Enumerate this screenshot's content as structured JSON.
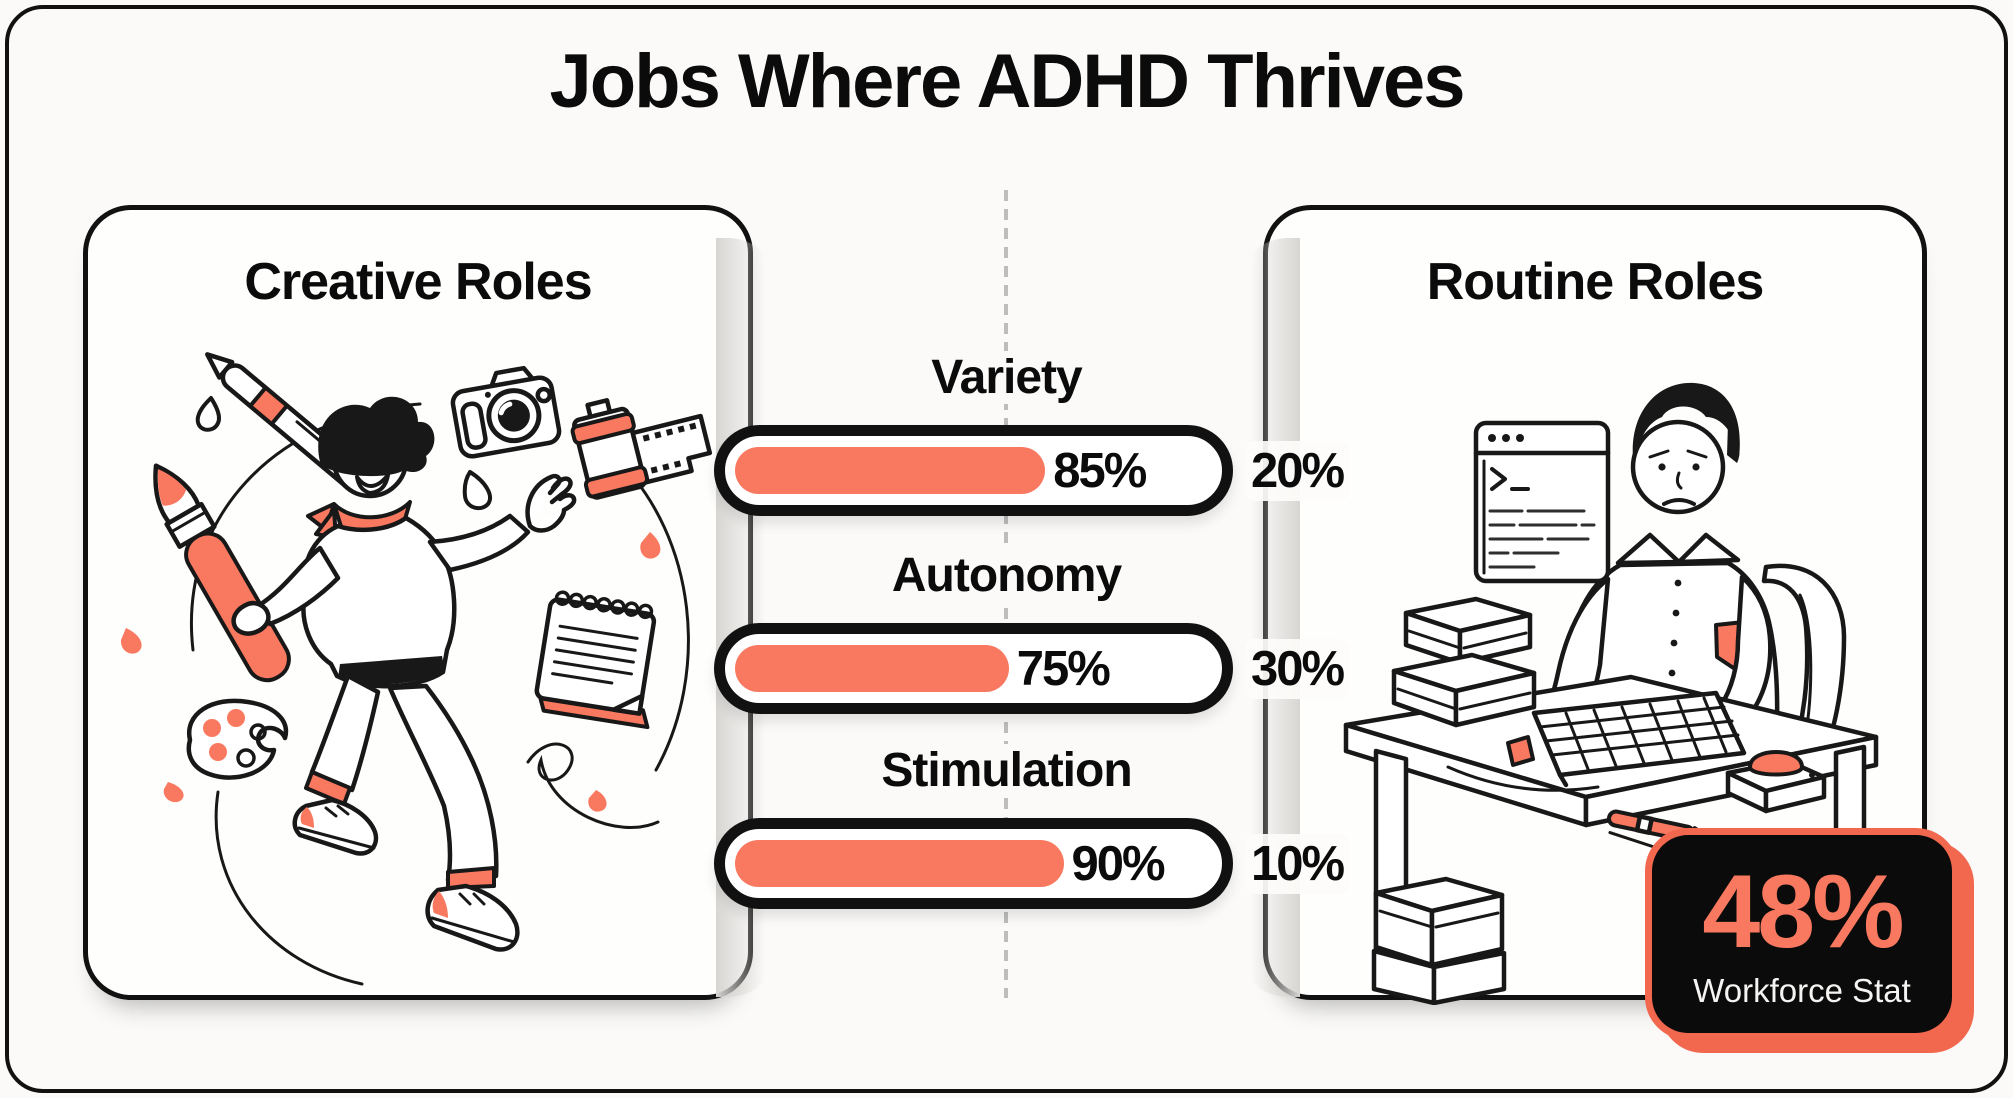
{
  "page": {
    "title": "Jobs Where ADHD Thrives"
  },
  "colors": {
    "canvas_bg": "#FBFAF8",
    "card_bg": "#FEFEFD",
    "ink": "#111111",
    "accent": "#F8795F",
    "accent_deep": "#F2684E",
    "divider": "#BDBDBD",
    "badge_bg": "#0B0B0B",
    "badge_label": "#F5F4F2"
  },
  "left_card": {
    "title": "Creative Roles"
  },
  "right_card": {
    "title": "Routine Roles"
  },
  "bars": [
    {
      "label": "Variety",
      "creative_value": "85%",
      "routine_value": "20%",
      "creative_pct": 85,
      "routine_pct": 20
    },
    {
      "label": "Autonomy",
      "creative_value": "75%",
      "routine_value": "30%",
      "creative_pct": 75,
      "routine_pct": 30
    },
    {
      "label": "Stimulation",
      "creative_value": "90%",
      "routine_value": "10%",
      "creative_pct": 90,
      "routine_pct": 10
    }
  ],
  "badge": {
    "value": "48%",
    "label": "Workforce Stat"
  },
  "chart_data": {
    "type": "bar",
    "title": "Jobs Where ADHD Thrives",
    "categories": [
      "Variety",
      "Autonomy",
      "Stimulation"
    ],
    "series": [
      {
        "name": "Creative Roles",
        "values": [
          85,
          75,
          90
        ]
      },
      {
        "name": "Routine Roles",
        "values": [
          20,
          30,
          10
        ]
      }
    ],
    "value_format": "percent",
    "xlim": [
      0,
      100
    ],
    "grid": false,
    "legend_position": "side-panels",
    "annotations": [
      {
        "value": 48,
        "label": "Workforce Stat",
        "format": "percent"
      }
    ]
  }
}
